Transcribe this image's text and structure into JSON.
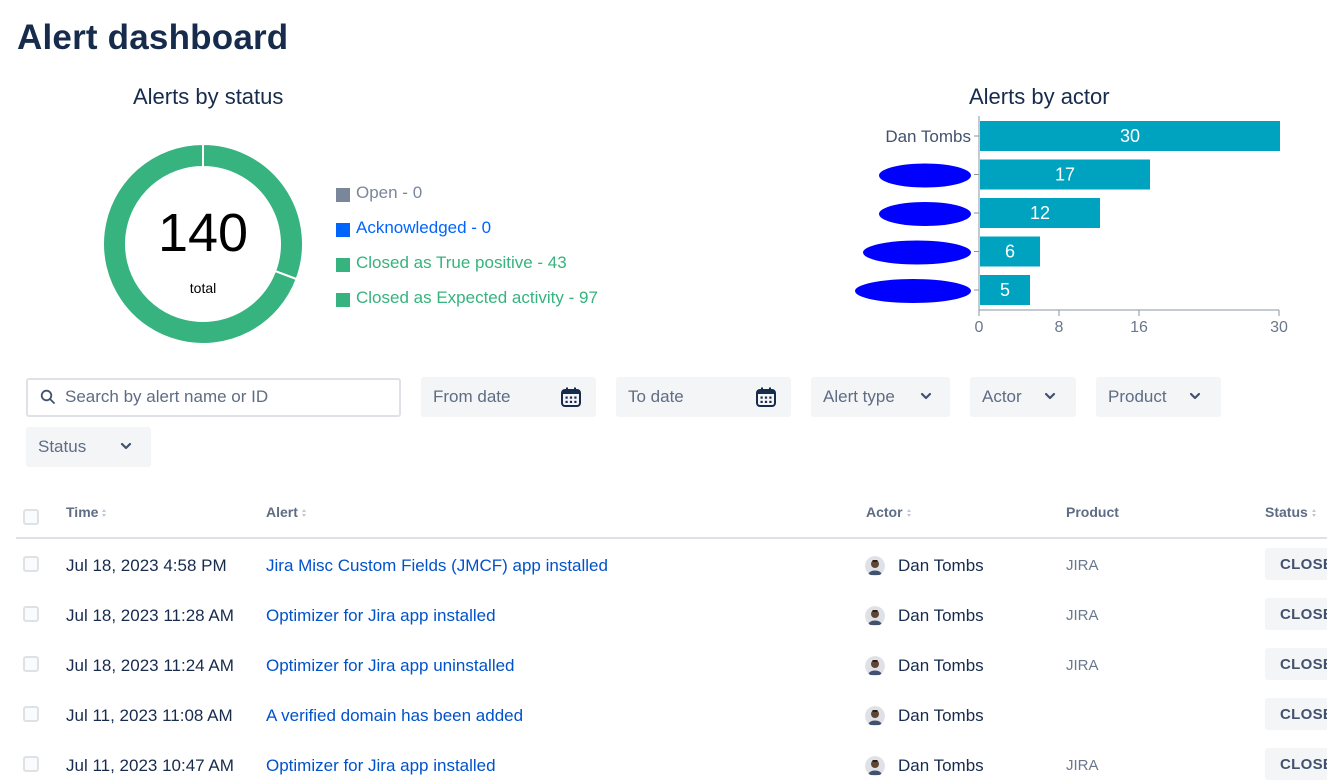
{
  "page": {
    "title": "Alert dashboard"
  },
  "status_chart": {
    "title": "Alerts by status",
    "total": "140",
    "total_label": "total",
    "legend": [
      {
        "label": "Open - 0",
        "color": "#7a869a"
      },
      {
        "label": "Acknowledged - 0",
        "color": "#0065ff"
      },
      {
        "label": "Closed as True positive - 43",
        "color": "#36b37e"
      },
      {
        "label": "Closed as Expected activity - 97",
        "color": "#36b37e"
      }
    ]
  },
  "actor_chart": {
    "title": "Alerts by actor",
    "bar_color": "#00a3bf",
    "redaction_color": "#0000ff"
  },
  "chart_data": [
    {
      "type": "pie",
      "title": "Alerts by status",
      "categories": [
        "Open",
        "Acknowledged",
        "Closed as True positive",
        "Closed as Expected activity"
      ],
      "values": [
        0,
        0,
        43,
        97
      ],
      "colors": [
        "#7a869a",
        "#0065ff",
        "#36b37e",
        "#36b37e"
      ],
      "total": 140,
      "legend": "right"
    },
    {
      "type": "bar",
      "orientation": "horizontal",
      "title": "Alerts by actor",
      "categories": [
        "Dan Tombs",
        "",
        "",
        "",
        ""
      ],
      "redacted": [
        false,
        true,
        true,
        true,
        true
      ],
      "values": [
        30,
        17,
        12,
        6,
        5
      ],
      "xticks": [
        "0",
        "8",
        "16",
        "30"
      ],
      "xlim": [
        0,
        30
      ]
    }
  ],
  "filters": {
    "search_placeholder": "Search by alert name or ID",
    "from_date": "From date",
    "to_date": "To date",
    "alert_type": "Alert type",
    "actor": "Actor",
    "product": "Product",
    "status": "Status",
    "icons": {
      "search": "search-icon",
      "calendar": "calendar-icon",
      "dropdown": "chevron-down-icon"
    }
  },
  "table": {
    "headers": {
      "time": "Time",
      "alert": "Alert",
      "actor": "Actor",
      "product": "Product",
      "status": "Status"
    },
    "rows": [
      {
        "time": "Jul 18, 2023 4:58 PM",
        "alert": "Jira Misc Custom Fields (JMCF) app installed",
        "actor": "Dan Tombs",
        "product": "JIRA",
        "status": "CLOSED"
      },
      {
        "time": "Jul 18, 2023 11:28 AM",
        "alert": "Optimizer for Jira app installed",
        "actor": "Dan Tombs",
        "product": "JIRA",
        "status": "CLOSED"
      },
      {
        "time": "Jul 18, 2023 11:24 AM",
        "alert": "Optimizer for Jira app uninstalled",
        "actor": "Dan Tombs",
        "product": "JIRA",
        "status": "CLOSED"
      },
      {
        "time": "Jul 11, 2023 11:08 AM",
        "alert": "A verified domain has been added",
        "actor": "Dan Tombs",
        "product": "",
        "status": "CLOSED"
      },
      {
        "time": "Jul 11, 2023 10:47 AM",
        "alert": "Optimizer for Jira app installed",
        "actor": "Dan Tombs",
        "product": "JIRA",
        "status": "CLOSED"
      }
    ]
  }
}
